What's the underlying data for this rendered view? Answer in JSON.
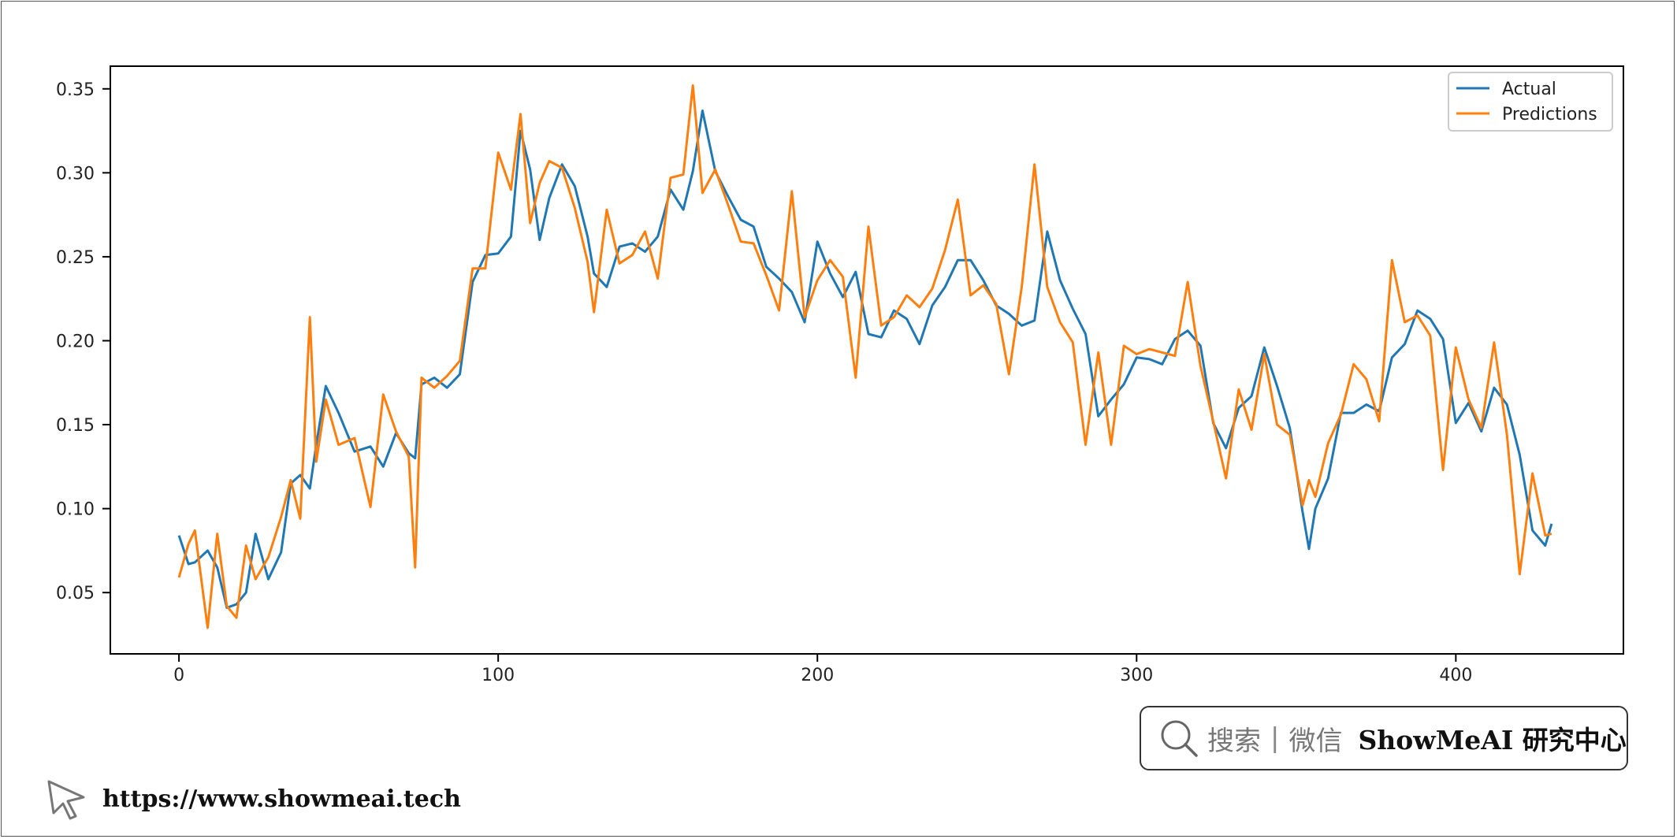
{
  "chart_data": {
    "type": "line",
    "title": "",
    "xlabel": "",
    "ylabel": "",
    "xlim": [
      -21.5,
      452.5
    ],
    "ylim": [
      0.0135,
      0.3635
    ],
    "xticks": [
      0,
      100,
      200,
      300,
      400
    ],
    "yticks": [
      0.05,
      0.1,
      0.15,
      0.2,
      0.25,
      0.3,
      0.35
    ],
    "ytick_labels": [
      "0.05",
      "0.10",
      "0.15",
      "0.20",
      "0.25",
      "0.30",
      "0.35"
    ],
    "grid": false,
    "legend_position": "upper right",
    "x": [
      0,
      3,
      5,
      9,
      12,
      15,
      18,
      21,
      24,
      28,
      32,
      35,
      38,
      41,
      43,
      46,
      50,
      55,
      60,
      64,
      68,
      72,
      74,
      76,
      80,
      84,
      88,
      92,
      96,
      100,
      104,
      107,
      110,
      113,
      116,
      120,
      124,
      128,
      130,
      134,
      138,
      142,
      146,
      150,
      154,
      158,
      161,
      164,
      168,
      172,
      176,
      180,
      184,
      188,
      192,
      196,
      200,
      204,
      208,
      212,
      216,
      220,
      224,
      228,
      232,
      236,
      240,
      244,
      248,
      252,
      256,
      260,
      264,
      268,
      272,
      276,
      280,
      284,
      288,
      292,
      296,
      300,
      304,
      308,
      312,
      316,
      320,
      324,
      328,
      332,
      336,
      340,
      344,
      348,
      352,
      354,
      356,
      360,
      364,
      368,
      372,
      376,
      380,
      384,
      388,
      392,
      396,
      400,
      404,
      408,
      412,
      416,
      420,
      424,
      428,
      430
    ],
    "series": [
      {
        "name": "Actual",
        "color": "#1f77b4",
        "values": [
          0.084,
          0.067,
          0.068,
          0.075,
          0.065,
          0.041,
          0.043,
          0.05,
          0.085,
          0.058,
          0.074,
          0.115,
          0.12,
          0.112,
          0.138,
          0.173,
          0.157,
          0.134,
          0.137,
          0.125,
          0.145,
          0.133,
          0.13,
          0.174,
          0.178,
          0.172,
          0.18,
          0.235,
          0.251,
          0.252,
          0.262,
          0.325,
          0.302,
          0.26,
          0.285,
          0.305,
          0.292,
          0.262,
          0.24,
          0.232,
          0.256,
          0.258,
          0.253,
          0.262,
          0.29,
          0.278,
          0.301,
          0.337,
          0.301,
          0.286,
          0.272,
          0.268,
          0.244,
          0.237,
          0.229,
          0.211,
          0.259,
          0.24,
          0.226,
          0.241,
          0.204,
          0.202,
          0.218,
          0.213,
          0.198,
          0.221,
          0.232,
          0.248,
          0.248,
          0.236,
          0.221,
          0.216,
          0.209,
          0.212,
          0.265,
          0.236,
          0.219,
          0.204,
          0.155,
          0.165,
          0.174,
          0.19,
          0.189,
          0.186,
          0.201,
          0.206,
          0.197,
          0.151,
          0.136,
          0.16,
          0.167,
          0.196,
          0.173,
          0.148,
          0.098,
          0.076,
          0.1,
          0.118,
          0.157,
          0.157,
          0.162,
          0.158,
          0.19,
          0.198,
          0.218,
          0.213,
          0.201,
          0.151,
          0.163,
          0.146,
          0.172,
          0.162,
          0.132,
          0.087,
          0.078,
          0.091
        ]
      },
      {
        "name": "Predictions",
        "color": "#ff7f0e",
        "values": [
          0.059,
          0.079,
          0.087,
          0.029,
          0.085,
          0.042,
          0.035,
          0.078,
          0.058,
          0.071,
          0.095,
          0.117,
          0.094,
          0.214,
          0.128,
          0.165,
          0.138,
          0.142,
          0.101,
          0.168,
          0.146,
          0.131,
          0.065,
          0.178,
          0.172,
          0.179,
          0.188,
          0.243,
          0.243,
          0.312,
          0.29,
          0.335,
          0.27,
          0.294,
          0.307,
          0.303,
          0.279,
          0.247,
          0.217,
          0.278,
          0.246,
          0.251,
          0.265,
          0.237,
          0.297,
          0.299,
          0.352,
          0.288,
          0.302,
          0.281,
          0.259,
          0.258,
          0.239,
          0.218,
          0.289,
          0.214,
          0.236,
          0.248,
          0.238,
          0.178,
          0.268,
          0.209,
          0.214,
          0.227,
          0.22,
          0.231,
          0.254,
          0.284,
          0.227,
          0.233,
          0.222,
          0.18,
          0.232,
          0.305,
          0.232,
          0.211,
          0.199,
          0.138,
          0.193,
          0.138,
          0.197,
          0.192,
          0.195,
          0.193,
          0.191,
          0.235,
          0.185,
          0.152,
          0.118,
          0.171,
          0.147,
          0.192,
          0.15,
          0.144,
          0.102,
          0.117,
          0.107,
          0.139,
          0.156,
          0.186,
          0.177,
          0.152,
          0.248,
          0.211,
          0.215,
          0.203,
          0.123,
          0.196,
          0.165,
          0.148,
          0.199,
          0.144,
          0.061,
          0.121,
          0.084,
          0.085
        ]
      }
    ]
  },
  "watermark": {
    "search_label": "搜索",
    "separator": "|",
    "wechat_label": "微信",
    "brand": "ShowMeAI 研究中心"
  },
  "footer": {
    "url": "https://www.showmeai.tech"
  }
}
